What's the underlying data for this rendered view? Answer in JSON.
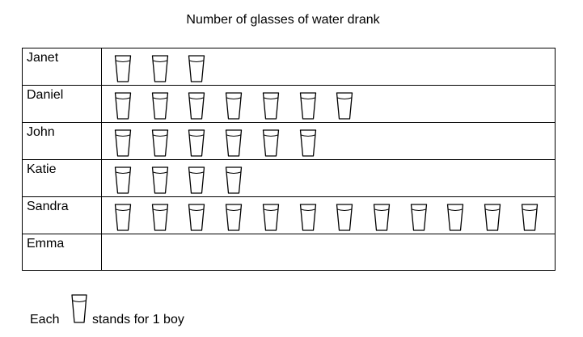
{
  "chart_data": {
    "type": "pictogram",
    "title": "Number of glasses of water drank",
    "categories": [
      "Janet",
      "Daniel",
      "John",
      "Katie",
      "Sandra",
      "Emma"
    ],
    "values": [
      3,
      7,
      6,
      4,
      12,
      0
    ],
    "icon": "glass-icon",
    "legend": {
      "prefix": "Each",
      "suffix": "stands for 1 boy",
      "icon": "glass-icon"
    }
  }
}
